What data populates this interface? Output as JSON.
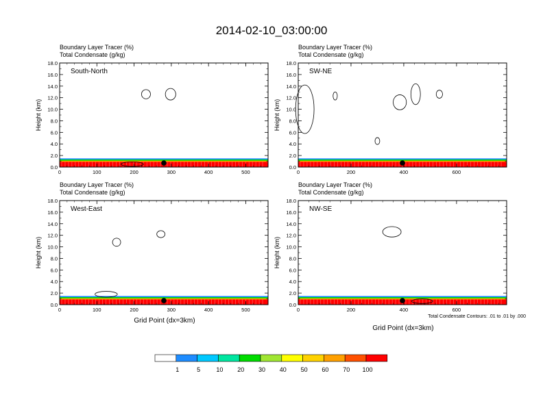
{
  "title": "2014-02-10_03:00:00",
  "common": {
    "subtitle_line1": "Boundary Layer Tracer   (%)",
    "subtitle_line2": "Total Condensate   (g/kg)",
    "ylabel": "Height (km)",
    "xlabel": "Grid Point (dx=3km)",
    "footnote": "Total Condensate Contours: .01 to .01 by .000",
    "y_ticks": [
      "0.0",
      "2.0",
      "4.0",
      "6.0",
      "8.0",
      "10.0",
      "12.0",
      "14.0",
      "16.0",
      "18.0"
    ]
  },
  "colorbar": {
    "labels": [
      "1",
      "5",
      "10",
      "20",
      "30",
      "40",
      "50",
      "60",
      "70",
      "100"
    ],
    "colors": [
      "#ffffff",
      "#1e8cff",
      "#00c8ff",
      "#00e6a0",
      "#00dc00",
      "#a0e632",
      "#ffff00",
      "#ffd200",
      "#ffa000",
      "#ff5000",
      "#ff0000"
    ]
  },
  "chart_data": [
    {
      "type": "heatmap",
      "name": "South-North",
      "xlim": [
        0,
        560
      ],
      "ylim": [
        0,
        18
      ],
      "x_ticks": [
        "0",
        "100",
        "200",
        "300",
        "400",
        "500"
      ],
      "marker": {
        "x": 280,
        "y": 0.7
      },
      "layers": [
        {
          "level": "1",
          "top": 1.5
        },
        {
          "level": "20",
          "top": 1.3
        },
        {
          "level": "60",
          "top": 1.1
        },
        {
          "level": "100",
          "top": 0.9
        }
      ],
      "contours": [
        {
          "x": 232,
          "y": 12.6,
          "rx": 12,
          "ry": 0.8
        },
        {
          "x": 298,
          "y": 12.6,
          "rx": 14,
          "ry": 1.0
        },
        {
          "x": 195,
          "y": 0.5,
          "rx": 30,
          "ry": 0.4
        }
      ]
    },
    {
      "type": "heatmap",
      "name": "SW-NE",
      "xlim": [
        0,
        790
      ],
      "ylim": [
        0,
        18
      ],
      "x_ticks": [
        "0",
        "200",
        "400",
        "600"
      ],
      "marker": {
        "x": 395,
        "y": 0.7
      },
      "layers": [
        {
          "level": "1",
          "top": 1.5
        },
        {
          "level": "20",
          "top": 1.3
        },
        {
          "level": "60",
          "top": 1.1
        },
        {
          "level": "100",
          "top": 0.9
        }
      ],
      "contours": [
        {
          "x": 25,
          "y": 10.0,
          "rx": 35,
          "ry": 4.2
        },
        {
          "x": 140,
          "y": 12.3,
          "rx": 8,
          "ry": 0.7
        },
        {
          "x": 385,
          "y": 11.2,
          "rx": 25,
          "ry": 1.3
        },
        {
          "x": 445,
          "y": 12.6,
          "rx": 18,
          "ry": 1.8
        },
        {
          "x": 535,
          "y": 12.6,
          "rx": 12,
          "ry": 0.7
        },
        {
          "x": 300,
          "y": 4.5,
          "rx": 9,
          "ry": 0.6
        }
      ]
    },
    {
      "type": "heatmap",
      "name": "West-East",
      "xlim": [
        0,
        560
      ],
      "ylim": [
        0,
        18
      ],
      "x_ticks": [
        "0",
        "100",
        "200",
        "300",
        "400",
        "500"
      ],
      "marker": {
        "x": 280,
        "y": 0.7
      },
      "layers": [
        {
          "level": "1",
          "top": 1.5
        },
        {
          "level": "20",
          "top": 1.3
        },
        {
          "level": "60",
          "top": 1.1
        },
        {
          "level": "100",
          "top": 0.9
        }
      ],
      "contours": [
        {
          "x": 153,
          "y": 10.8,
          "rx": 11,
          "ry": 0.7
        },
        {
          "x": 272,
          "y": 12.2,
          "rx": 11,
          "ry": 0.6
        },
        {
          "x": 125,
          "y": 1.8,
          "rx": 30,
          "ry": 0.5
        }
      ]
    },
    {
      "type": "heatmap",
      "name": "NW-SE",
      "xlim": [
        0,
        790
      ],
      "ylim": [
        0,
        18
      ],
      "x_ticks": [
        "0",
        "200",
        "400",
        "600"
      ],
      "marker": {
        "x": 395,
        "y": 0.7
      },
      "layers": [
        {
          "level": "1",
          "top": 1.5
        },
        {
          "level": "20",
          "top": 1.3
        },
        {
          "level": "60",
          "top": 1.1
        },
        {
          "level": "100",
          "top": 0.9
        }
      ],
      "contours": [
        {
          "x": 355,
          "y": 12.6,
          "rx": 35,
          "ry": 0.9
        },
        {
          "x": 470,
          "y": 0.6,
          "rx": 40,
          "ry": 0.4
        }
      ]
    }
  ]
}
